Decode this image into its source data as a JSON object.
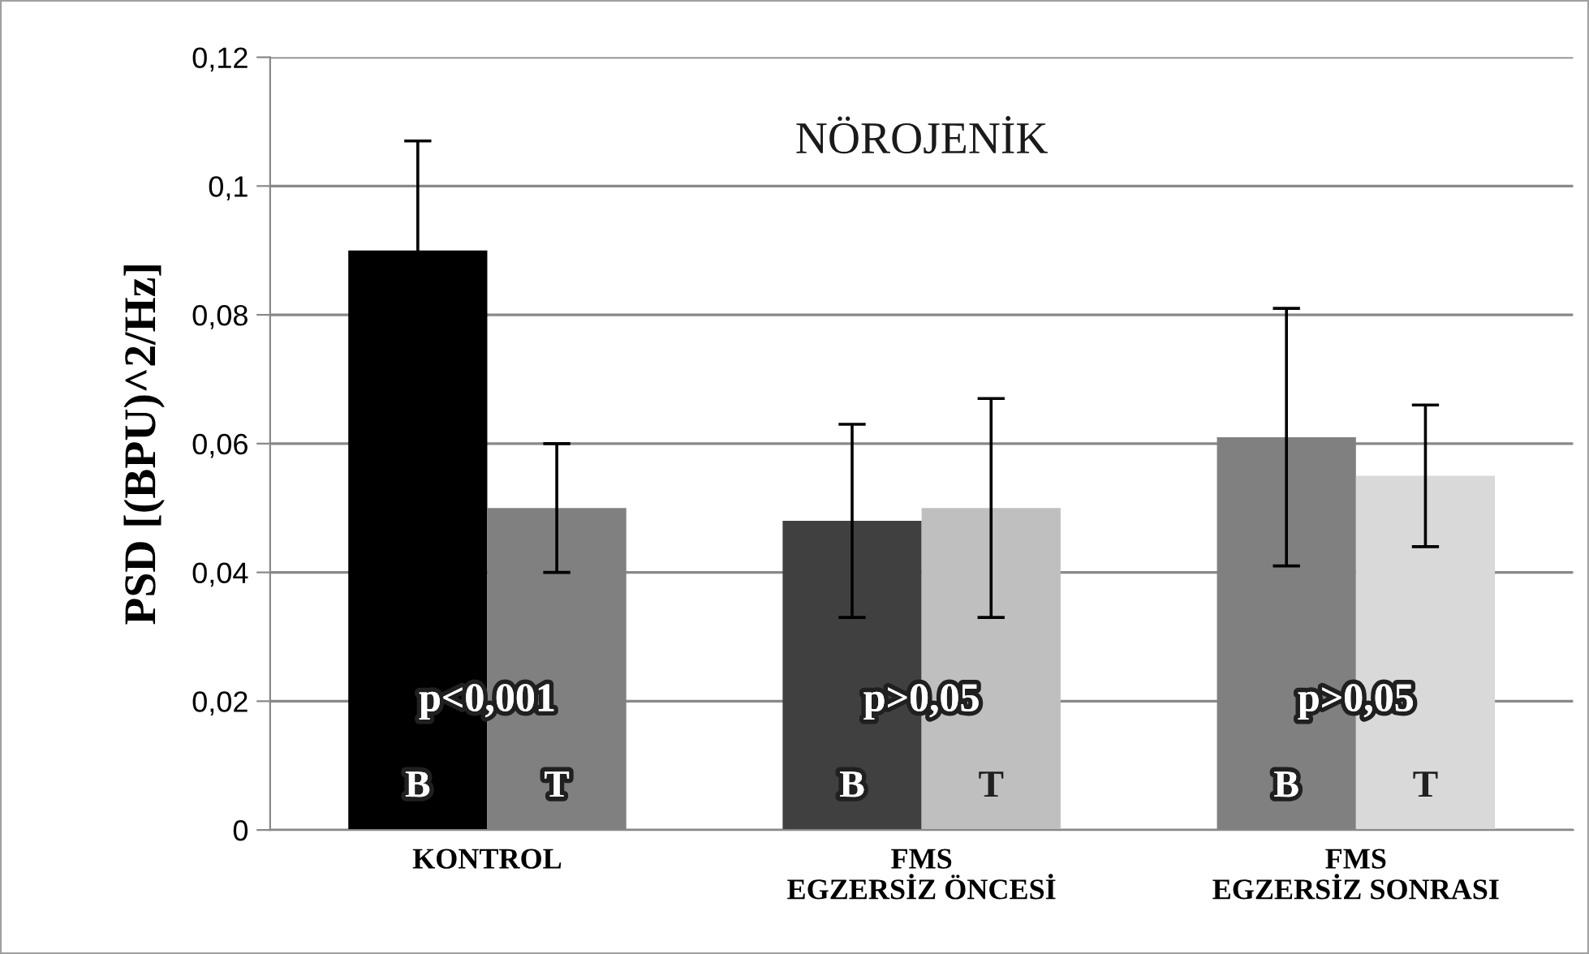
{
  "chart_data": {
    "type": "bar",
    "title": "NÖROJENİK",
    "ylabel": "PSD [(BPU)^2/Hz]",
    "categories": [
      "KONTROL",
      "FMS\nEGZERSİZ ÖNCESİ",
      "FMS\nEGZERSİZ SONRASI"
    ],
    "series": [
      {
        "name": "B",
        "colors": [
          "#000000",
          "#404040",
          "#808080"
        ],
        "values": [
          0.09,
          0.048,
          0.061
        ],
        "errors": [
          0.017,
          0.015,
          0.02
        ]
      },
      {
        "name": "T",
        "colors": [
          "#808080",
          "#bfbfbf",
          "#d9d9d9"
        ],
        "values": [
          0.05,
          0.05,
          0.055
        ],
        "errors": [
          0.01,
          0.017,
          0.011
        ]
      }
    ],
    "annotations": [
      {
        "text": "p<0,001",
        "x": "KONTROL",
        "y": 0.02
      },
      {
        "text": "p>0,05",
        "x": "FMS\nEGZERSİZ ÖNCESİ",
        "y": 0.02
      },
      {
        "text": "p>0,05",
        "x": "FMS\nEGZERSİZ SONRASI",
        "y": 0.02
      }
    ],
    "ylim": [
      0,
      0.12
    ],
    "yticks": [
      {
        "value": 0,
        "label": "0"
      },
      {
        "value": 0.02,
        "label": "0,02"
      },
      {
        "value": 0.04,
        "label": "0,04"
      },
      {
        "value": 0.06,
        "label": "0,06"
      },
      {
        "value": 0.08,
        "label": "0,08"
      },
      {
        "value": 0.1,
        "label": "0,1"
      },
      {
        "value": 0.12,
        "label": "0,12"
      }
    ],
    "grid": "y",
    "legend": false
  }
}
